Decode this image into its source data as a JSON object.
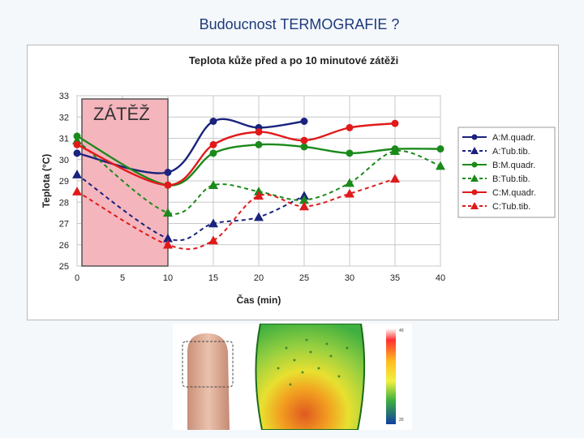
{
  "slide_title": "Budoucnost TERMOGRAFIE ?",
  "chart_data": {
    "type": "line",
    "title": "Teplota kůže před a po 10 minutové zátěži",
    "xlabel": "Čas (min)",
    "ylabel": "Teplota (°C)",
    "xlim": [
      0,
      40
    ],
    "ylim": [
      25,
      33
    ],
    "xticks": [
      "0",
      "5",
      "10",
      "15",
      "20",
      "25",
      "30",
      "35",
      "40"
    ],
    "yticks": [
      "25",
      "26",
      "27",
      "28",
      "29",
      "30",
      "31",
      "32",
      "33"
    ],
    "grid": true,
    "legend_position": "right",
    "annotation": {
      "label": "ZÁTĚŽ",
      "x_range": [
        0,
        10
      ],
      "color": "#f5b5bd"
    },
    "series": [
      {
        "name": "A:M.quadr.",
        "color": "#1a237e",
        "dash": false,
        "marker": "circle",
        "x": [
          0,
          10,
          15,
          20,
          25
        ],
        "y": [
          30.3,
          29.4,
          31.8,
          31.5,
          31.8
        ]
      },
      {
        "name": "A:Tub.tib.",
        "color": "#1a237e",
        "dash": true,
        "marker": "triangle",
        "x": [
          0,
          10,
          15,
          20,
          25
        ],
        "y": [
          29.3,
          26.3,
          27.0,
          27.3,
          28.3
        ]
      },
      {
        "name": "B:M.quadr.",
        "color": "#1b8a1b",
        "dash": false,
        "marker": "circle",
        "x": [
          0,
          10,
          15,
          20,
          25,
          30,
          35,
          40
        ],
        "y": [
          31.1,
          28.8,
          30.3,
          30.7,
          30.6,
          30.3,
          30.5,
          30.5
        ]
      },
      {
        "name": "B:Tub.tib.",
        "color": "#1b8a1b",
        "dash": true,
        "marker": "triangle",
        "x": [
          0,
          10,
          15,
          20,
          25,
          30,
          35,
          40
        ],
        "y": [
          30.9,
          27.5,
          28.8,
          28.5,
          28.1,
          28.9,
          30.4,
          29.7
        ]
      },
      {
        "name": "C:M.quadr.",
        "color": "#e01a1a",
        "dash": false,
        "marker": "circle",
        "x": [
          0,
          10,
          15,
          20,
          25,
          30,
          35
        ],
        "y": [
          30.7,
          28.8,
          30.7,
          31.3,
          30.9,
          31.5,
          31.7
        ]
      },
      {
        "name": "C:Tub.tib.",
        "color": "#e01a1a",
        "dash": true,
        "marker": "triangle",
        "x": [
          0,
          10,
          15,
          20,
          25,
          30,
          35
        ],
        "y": [
          28.5,
          26.0,
          26.2,
          28.3,
          27.8,
          28.4,
          29.1
        ]
      }
    ]
  },
  "photos": {
    "thermal_scale_labels": [
      "40",
      "",
      "",
      "",
      "",
      "20"
    ]
  }
}
